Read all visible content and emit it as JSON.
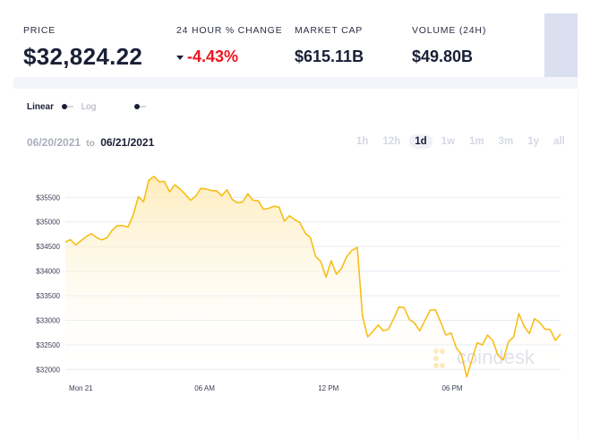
{
  "stats": [
    {
      "label": "PRICE",
      "value": "$32,824.22"
    },
    {
      "label": "24 HOUR % CHANGE",
      "value": "-4.43%",
      "direction_icon": "caret-down-icon",
      "color": "#f0141e"
    },
    {
      "label": "MARKET CAP",
      "value": "$615.11B"
    },
    {
      "label": "VOLUME (24H)",
      "value": "$49.80B"
    }
  ],
  "scale_toggle": {
    "linear": "Linear",
    "log": "Log",
    "selected": "Linear"
  },
  "date_range": {
    "from": "06/20/2021",
    "to_word": "to",
    "to": "06/21/2021"
  },
  "ranges": [
    "1h",
    "12h",
    "1d",
    "1w",
    "1m",
    "3m",
    "1y",
    "all"
  ],
  "selected_range": "1d",
  "watermark": "coindesk",
  "chart_data": {
    "type": "area",
    "line_color": "#f7be19",
    "grid": true,
    "yticks": [
      "$32000",
      "$32500",
      "$33000",
      "$33500",
      "$34000",
      "$34500",
      "$35000",
      "$35500"
    ],
    "ytick_values": [
      32000,
      32500,
      33000,
      33500,
      34000,
      34500,
      35000,
      35500
    ],
    "xticks": [
      "Mon 21",
      "06 AM",
      "12 PM",
      "06 PM"
    ],
    "xtick_hours": [
      0,
      6,
      12,
      18
    ],
    "interval_minutes": 15,
    "x_start": "06/20/2021 23:15",
    "values": [
      34592,
      34640,
      34531,
      34622,
      34701,
      34762,
      34683,
      34634,
      34683,
      34835,
      34926,
      34926,
      34895,
      35138,
      35515,
      35411,
      35848,
      35927,
      35818,
      35824,
      35612,
      35757,
      35672,
      35563,
      35442,
      35521,
      35684,
      35672,
      35636,
      35636,
      35533,
      35654,
      35460,
      35393,
      35405,
      35575,
      35442,
      35430,
      35260,
      35278,
      35320,
      35302,
      35017,
      35126,
      35047,
      34986,
      34774,
      34683,
      34300,
      34197,
      33876,
      34209,
      33936,
      34058,
      34300,
      34422,
      34483,
      33087,
      32662,
      32771,
      32904,
      32783,
      32819,
      33032,
      33269,
      33256,
      33014,
      32941,
      32783,
      33002,
      33208,
      33214,
      32965,
      32698,
      32741,
      32437,
      32297,
      31848,
      32194,
      32540,
      32498,
      32698,
      32589,
      32285,
      32194,
      32559,
      32662,
      33135,
      32880,
      32728,
      33032,
      32953,
      32819,
      32813,
      32589,
      32722
    ]
  }
}
